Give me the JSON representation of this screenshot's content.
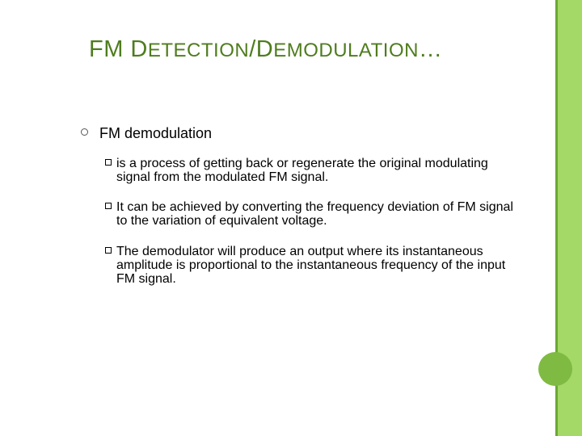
{
  "colors": {
    "title": "#4f7c1e",
    "bar": "#a4d867",
    "line": "#6aa933",
    "dot": "#7fbb42"
  },
  "title_html": "FM D<span style='font-size:24px'>ETECTION</span>/D<span style='font-size:24px'>EMODULATION</span>…",
  "lvl1": "FM demodulation",
  "points": [
    "is a process of getting back or regenerate the original modulating signal from the modulated FM signal.",
    "It can be achieved by converting the frequency deviation of FM signal to the variation of equivalent voltage.",
    "The demodulator will produce an output where its instantaneous amplitude is proportional to the instantaneous frequency of the input FM signal."
  ]
}
